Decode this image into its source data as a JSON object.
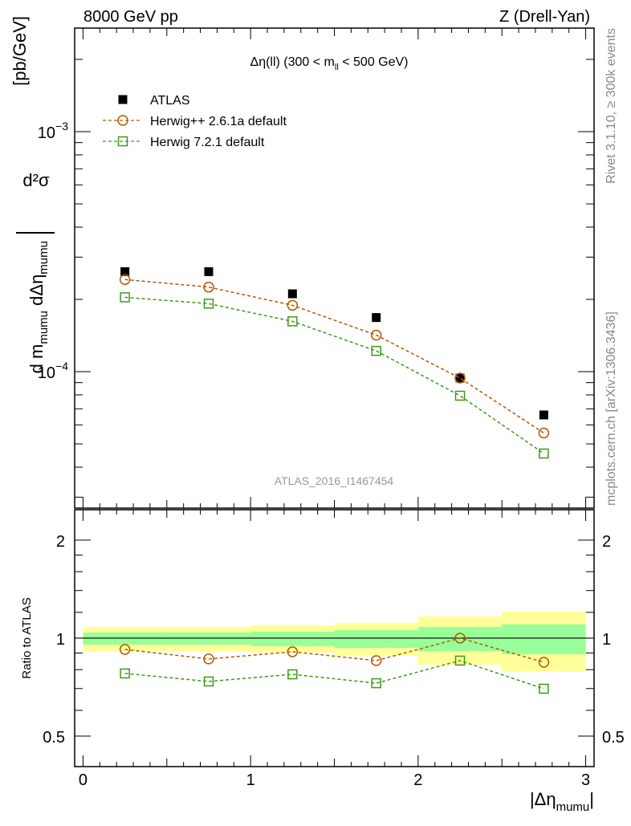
{
  "header": {
    "left": "8000 GeV pp",
    "right": "Z (Drell-Yan)"
  },
  "side_labels": {
    "top": "Rivet 3.1.10, ≥ 300k events",
    "bottom": "mcplots.cern.ch [arXiv:1306.3436]"
  },
  "watermark": "ATLAS_2016_I1467454",
  "chart_data": [
    {
      "type": "scatter",
      "title": "Δη(ll) (300 < m_ll < 500 GeV)",
      "title_parts": {
        "pre": "Δη(ll) (300 < m",
        "sub": "ll",
        "post": " < 500 GeV)"
      },
      "ylabel": "d²σ / d m_mumu dΔη_mumu [pb/GeV]",
      "ylabel_parts": {
        "num": "d²σ",
        "den_a": "d m",
        "den_sub1": "mumu",
        "den_b": " dΔη",
        "den_sub2": "mumu",
        "unit": "[pb/GeV]"
      },
      "yscale": "log",
      "ylim": [
        2.7e-05,
        0.0027
      ],
      "xlim": [
        -0.05,
        3.05
      ],
      "ytick_labels": [
        {
          "value": 0.001,
          "base": "10",
          "exp": "−3"
        },
        {
          "value": 0.0001,
          "base": "10",
          "exp": "−4"
        }
      ],
      "legend_position": "top-left",
      "x": [
        0.25,
        0.75,
        1.25,
        1.75,
        2.25,
        2.75
      ],
      "series": [
        {
          "name": "ATLAS",
          "marker": "filled-square",
          "color": "#000000",
          "values": [
            0.000261,
            0.000261,
            0.000211,
            0.000168,
            9.4e-05,
            6.6e-05
          ]
        },
        {
          "name": "Herwig++ 2.6.1a default",
          "marker": "open-circle",
          "color": "#b35900",
          "values": [
            0.000242,
            0.000225,
            0.000189,
            0.000142,
            9.4e-05,
            5.55e-05
          ]
        },
        {
          "name": "Herwig 7.2.1 default",
          "marker": "open-square",
          "color": "#3c9a18",
          "values": [
            0.000204,
            0.000192,
            0.000162,
            0.000122,
            7.94e-05,
            4.56e-05
          ]
        }
      ]
    },
    {
      "type": "line",
      "ylabel": "Ratio to ATLAS",
      "xlabel": "|Δη_mumu|",
      "xlabel_parts": {
        "pre": "|Δη",
        "sub": "mumu",
        "post": "|"
      },
      "yscale": "log",
      "ylim": [
        0.403,
        2.48
      ],
      "xlim": [
        -0.05,
        3.05
      ],
      "xtick_labels": [
        "0",
        "1",
        "2",
        "3"
      ],
      "ytick_labels": [
        "2",
        "1",
        "0.5"
      ],
      "bin_edges": [
        0,
        0.5,
        1,
        1.5,
        2,
        2.5,
        3
      ],
      "band_stat": {
        "color": "#99ff99",
        "low": [
          0.955,
          0.955,
          0.945,
          0.934,
          0.913,
          0.892
        ],
        "high": [
          1.04,
          1.04,
          1.046,
          1.058,
          1.083,
          1.102
        ]
      },
      "band_total": {
        "color": "#ffff99",
        "low": [
          0.913,
          0.913,
          0.903,
          0.882,
          0.829,
          0.792
        ],
        "high": [
          1.083,
          1.083,
          1.095,
          1.114,
          1.166,
          1.206
        ]
      },
      "x": [
        0.25,
        0.75,
        1.25,
        1.75,
        2.25,
        2.75
      ],
      "series": [
        {
          "name": "Herwig++ 2.6.1a default",
          "marker": "open-circle",
          "color": "#b35900",
          "values": [
            0.923,
            0.863,
            0.908,
            0.853,
            1.0,
            0.843
          ]
        },
        {
          "name": "Herwig 7.2.1 default",
          "marker": "open-square",
          "color": "#3c9a18",
          "values": [
            0.779,
            0.736,
            0.774,
            0.727,
            0.853,
            0.699
          ]
        }
      ]
    }
  ]
}
